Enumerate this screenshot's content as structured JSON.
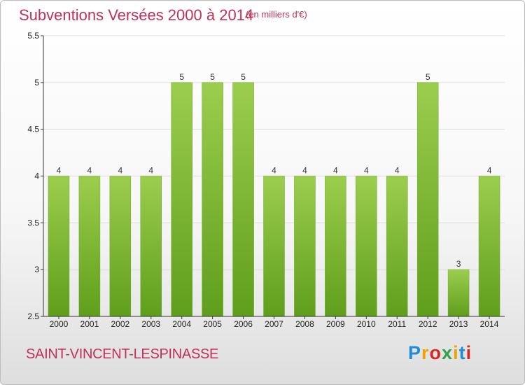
{
  "header": {
    "title": "Subventions Versées 2000 à 2014",
    "unit_note": "(en milliers d'€)"
  },
  "footer": {
    "commune": "SAINT-VINCENT-LESPINASSE",
    "logo_text": "Proxiti",
    "logo_colors": [
      "#1f8dd6",
      "#f0a000",
      "#d6281e",
      "#2fa34a",
      "#f0a000",
      "#1f8dd6",
      "#d6281e"
    ]
  },
  "colors": {
    "title": "#c0315a",
    "bar_top": "#9ccd4e",
    "bar_bottom": "#5f9e1c",
    "axis": "#333333",
    "grid": "#dddddd"
  },
  "chart_data": {
    "type": "bar",
    "categories": [
      "2000",
      "2001",
      "2002",
      "2003",
      "2004",
      "2005",
      "2006",
      "2007",
      "2008",
      "2009",
      "2010",
      "2011",
      "2012",
      "2013",
      "2014"
    ],
    "values": [
      4,
      4,
      4,
      4,
      5,
      5,
      5,
      4,
      4,
      4,
      4,
      4,
      5,
      3,
      4
    ],
    "ylim": [
      2.5,
      5.5
    ],
    "yticks": [
      "2.5",
      "3",
      "3.5",
      "4",
      "4.5",
      "5",
      "5.5"
    ],
    "ytick_values": [
      2.5,
      3,
      3.5,
      4,
      4.5,
      5,
      5.5
    ],
    "grid": true,
    "data_labels": true
  }
}
